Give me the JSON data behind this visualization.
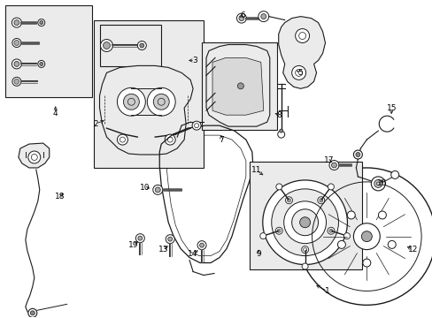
{
  "bg_color": "#ffffff",
  "line_color": "#1a1a1a",
  "fill_color": "#f0f0f0",
  "figsize": [
    4.89,
    3.6
  ],
  "dpi": 100,
  "labels": [
    [
      "1",
      370,
      330,
      355,
      322
    ],
    [
      "2",
      108,
      140,
      120,
      135
    ],
    [
      "3",
      220,
      68,
      210,
      68
    ],
    [
      "4",
      62,
      128,
      62,
      117
    ],
    [
      "5",
      340,
      82,
      333,
      78
    ],
    [
      "6",
      274,
      17,
      268,
      20
    ],
    [
      "7",
      250,
      158,
      250,
      150
    ],
    [
      "8",
      316,
      130,
      308,
      127
    ],
    [
      "9",
      292,
      288,
      292,
      280
    ],
    [
      "10",
      163,
      213,
      172,
      213
    ],
    [
      "11",
      290,
      193,
      300,
      200
    ],
    [
      "12",
      467,
      283,
      458,
      278
    ],
    [
      "13",
      184,
      283,
      192,
      277
    ],
    [
      "14",
      218,
      288,
      226,
      282
    ],
    [
      "15",
      443,
      122,
      443,
      132
    ],
    [
      "16",
      432,
      208,
      432,
      200
    ],
    [
      "17",
      372,
      182,
      378,
      185
    ],
    [
      "18",
      67,
      223,
      73,
      217
    ],
    [
      "19",
      150,
      278,
      158,
      272
    ]
  ]
}
